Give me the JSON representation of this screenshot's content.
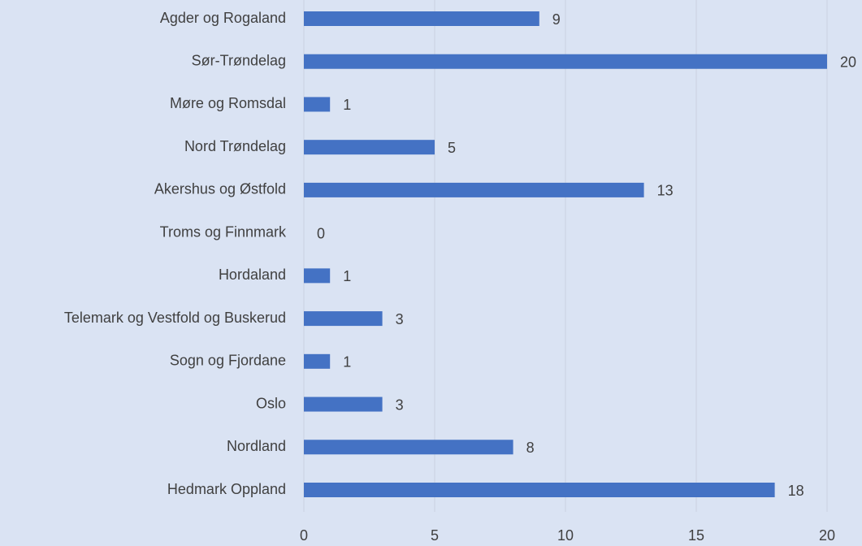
{
  "chart_data": {
    "type": "bar",
    "orientation": "horizontal",
    "categories": [
      "Agder og Rogaland",
      "Sør-Trøndelag",
      "Møre og Romsdal",
      "Nord Trøndelag",
      "Akershus og Østfold",
      "Troms og Finnmark",
      "Hordaland",
      "Telemark og Vestfold og Buskerud",
      "Sogn og Fjordane",
      "Oslo",
      "Nordland",
      "Hedmark Oppland"
    ],
    "values": [
      9,
      20,
      1,
      5,
      13,
      0,
      1,
      3,
      1,
      3,
      8,
      18
    ],
    "color": "#4472c4",
    "xlim": [
      0,
      20
    ],
    "xticks": [
      0,
      5,
      10,
      15,
      20
    ],
    "grid": true
  }
}
